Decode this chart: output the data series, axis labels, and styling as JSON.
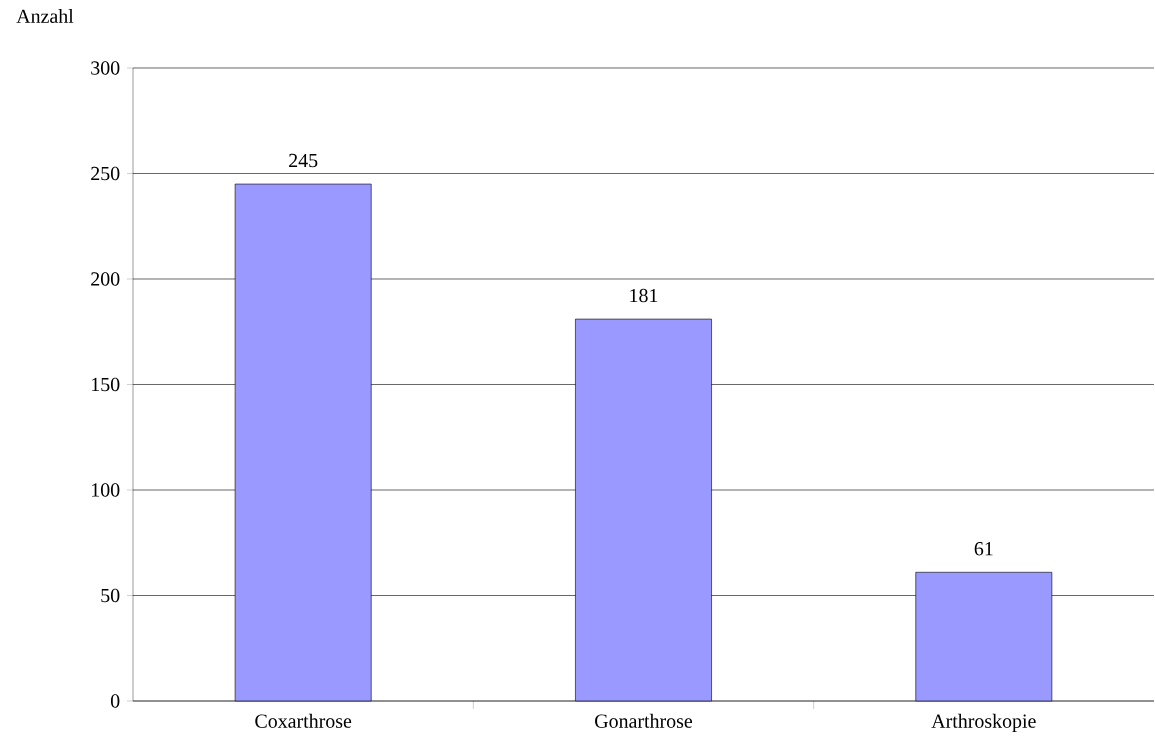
{
  "chart_data": {
    "type": "bar",
    "ylabel": "Anzahl",
    "categories": [
      "Coxarthrose",
      "Gonarthrose",
      "Arthroskopie"
    ],
    "values": [
      245,
      181,
      61
    ],
    "color": "#9999ff",
    "ylim": [
      0,
      300
    ],
    "yticks": [
      0,
      50,
      100,
      150,
      200,
      250,
      300
    ],
    "grid": "y",
    "data_labels": true
  }
}
